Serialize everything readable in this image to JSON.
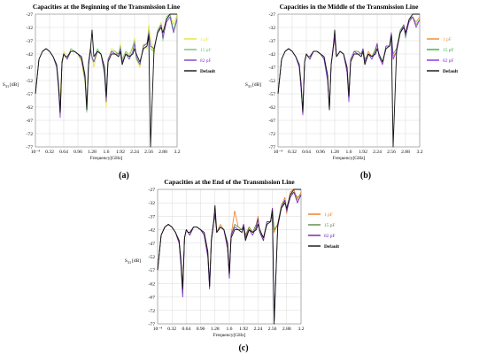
{
  "figure": {
    "panel_letters": [
      "(a)",
      "(b)",
      "(c)"
    ]
  },
  "chart_data": [
    {
      "panel": "(a)",
      "type": "line",
      "title": "Capacities at the Beginning of the Transmission Line",
      "xlabel": "Frequency[GHz]",
      "ylabel": "S31 [dB]",
      "ylabel_main": "S",
      "ylabel_sub": "31",
      "ylabel_unit": "[dB]",
      "xlim": [
        0.0001,
        3.2
      ],
      "ylim": [
        -77,
        -27
      ],
      "x_ticks": [
        0.0001,
        0.32,
        0.64,
        0.96,
        1.28,
        1.6,
        1.92,
        2.24,
        2.56,
        2.88,
        3.2
      ],
      "x_tick_labels": [
        "10⁻⁴",
        "0.32",
        "0.64",
        "0.96",
        "1.28",
        "1.6",
        "1.92",
        "2.24",
        "2.56",
        "2.88",
        "3.2"
      ],
      "y_ticks": [
        -27,
        -32,
        -37,
        -42,
        -47,
        -52,
        -57,
        -62,
        -67,
        -72,
        -77
      ],
      "legend_position": "right",
      "x": [
        0.0001,
        0.08,
        0.16,
        0.24,
        0.32,
        0.4,
        0.48,
        0.52,
        0.56,
        0.6,
        0.64,
        0.68,
        0.72,
        0.8,
        0.88,
        0.96,
        1.04,
        1.12,
        1.16,
        1.2,
        1.24,
        1.28,
        1.32,
        1.4,
        1.48,
        1.56,
        1.6,
        1.64,
        1.72,
        1.8,
        1.88,
        1.92,
        1.96,
        2.04,
        2.12,
        2.2,
        2.24,
        2.28,
        2.36,
        2.44,
        2.52,
        2.56,
        2.6,
        2.68,
        2.76,
        2.84,
        2.88,
        2.96,
        3.04,
        3.12,
        3.2
      ],
      "series": [
        {
          "name": "1 pF",
          "color": "#e8e33a",
          "values": [
            -57,
            -44,
            -41,
            -40,
            -41,
            -43,
            -47,
            -54,
            -58,
            -46,
            -41,
            -42,
            -44,
            -40,
            -41,
            -42,
            -45,
            -53,
            -60,
            -46,
            -39,
            -43,
            -47,
            -41,
            -42,
            -48,
            -62,
            -45,
            -40,
            -41,
            -43,
            -38,
            -46,
            -41,
            -42,
            -40,
            -36,
            -44,
            -47,
            -38,
            -40,
            -31,
            -36,
            -42,
            -33,
            -30,
            -35,
            -29,
            -27,
            -31,
            -27
          ]
        },
        {
          "name": "15 pF",
          "color": "#6ec46e",
          "values": [
            -57,
            -44,
            -41,
            -40,
            -41,
            -43,
            -47,
            -55,
            -62,
            -46,
            -42,
            -43,
            -44,
            -40,
            -41,
            -42,
            -44,
            -52,
            -64,
            -47,
            -40,
            -44,
            -45,
            -40,
            -42,
            -50,
            -60,
            -44,
            -41,
            -41,
            -42,
            -39,
            -44,
            -41,
            -43,
            -39,
            -37,
            -44,
            -46,
            -39,
            -38,
            -33,
            -40,
            -41,
            -33,
            -31,
            -37,
            -28,
            -27,
            -33,
            -28
          ]
        },
        {
          "name": "82 pF",
          "color": "#7b3fc4",
          "values": [
            -57,
            -44,
            -41,
            -40,
            -41,
            -43,
            -47,
            -55,
            -66,
            -45,
            -42,
            -43,
            -44,
            -41,
            -41,
            -42,
            -44,
            -51,
            -62,
            -45,
            -40,
            -43,
            -45,
            -41,
            -42,
            -49,
            -60,
            -44,
            -41,
            -42,
            -42,
            -40,
            -45,
            -42,
            -44,
            -41,
            -38,
            -43,
            -46,
            -39,
            -38,
            -34,
            -39,
            -40,
            -34,
            -31,
            -36,
            -30,
            -28,
            -34,
            -29
          ]
        },
        {
          "name": "Default",
          "color": "#111111",
          "values": [
            -57,
            -44,
            -41,
            -40,
            -41,
            -43,
            -46,
            -53,
            -64,
            -45,
            -42,
            -43,
            -43,
            -41,
            -41,
            -42,
            -43,
            -50,
            -63,
            -46,
            -41,
            -33,
            -43,
            -41,
            -42,
            -47,
            -58,
            -45,
            -42,
            -42,
            -43,
            -41,
            -46,
            -42,
            -43,
            -42,
            -40,
            -42,
            -45,
            -40,
            -39,
            -35,
            -77,
            -40,
            -34,
            -32,
            -34,
            -29,
            -27,
            -27,
            -27
          ]
        }
      ]
    },
    {
      "panel": "(b)",
      "type": "line",
      "title": "Capacities in the Middle of the Transmission Line",
      "xlabel": "Frequency[GHz]",
      "ylabel": "S31 [dB]",
      "ylabel_main": "S",
      "ylabel_sub": "31",
      "ylabel_unit": "[dB]",
      "xlim": [
        0.0001,
        3.2
      ],
      "ylim": [
        -77,
        -27
      ],
      "x_ticks": [
        0.0001,
        0.32,
        0.64,
        0.96,
        1.28,
        1.6,
        1.92,
        2.24,
        2.56,
        2.88,
        3.2
      ],
      "x_tick_labels": [
        "10⁻⁴",
        "0.32",
        "0.64",
        "0.96",
        "1.28",
        "1.6",
        "1.92",
        "2.24",
        "2.56",
        "2.88",
        "3.2"
      ],
      "y_ticks": [
        -27,
        -32,
        -37,
        -42,
        -47,
        -52,
        -57,
        -62,
        -67,
        -72,
        -77
      ],
      "legend_position": "right",
      "x": [
        0.0001,
        0.08,
        0.16,
        0.24,
        0.32,
        0.4,
        0.48,
        0.52,
        0.56,
        0.6,
        0.64,
        0.68,
        0.72,
        0.8,
        0.88,
        0.96,
        1.04,
        1.12,
        1.16,
        1.2,
        1.24,
        1.28,
        1.32,
        1.4,
        1.48,
        1.56,
        1.6,
        1.64,
        1.72,
        1.8,
        1.88,
        1.92,
        1.96,
        2.04,
        2.12,
        2.2,
        2.24,
        2.28,
        2.36,
        2.44,
        2.52,
        2.56,
        2.6,
        2.68,
        2.76,
        2.84,
        2.88,
        2.96,
        3.04,
        3.12,
        3.2
      ],
      "series": [
        {
          "name": "1 pF",
          "color": "#ee8a2a",
          "values": [
            -57,
            -44,
            -41,
            -40,
            -41,
            -43,
            -47,
            -55,
            -64,
            -45,
            -42,
            -43,
            -44,
            -41,
            -41,
            -42,
            -44,
            -51,
            -63,
            -46,
            -40,
            -37,
            -43,
            -41,
            -42,
            -48,
            -58,
            -44,
            -41,
            -41,
            -42,
            -40,
            -45,
            -41,
            -43,
            -41,
            -38,
            -43,
            -46,
            -39,
            -39,
            -35,
            -43,
            -41,
            -34,
            -31,
            -35,
            -29,
            -28,
            -30,
            -28
          ]
        },
        {
          "name": "15 pF",
          "color": "#3cae3c",
          "values": [
            -57,
            -44,
            -41,
            -40,
            -41,
            -43,
            -47,
            -55,
            -63,
            -45,
            -42,
            -43,
            -44,
            -41,
            -41,
            -42,
            -44,
            -52,
            -62,
            -46,
            -40,
            -36,
            -43,
            -41,
            -42,
            -49,
            -59,
            -44,
            -41,
            -41,
            -42,
            -40,
            -44,
            -42,
            -43,
            -40,
            -38,
            -43,
            -45,
            -39,
            -39,
            -34,
            -42,
            -40,
            -33,
            -31,
            -36,
            -29,
            -28,
            -31,
            -29
          ]
        },
        {
          "name": "82 pF",
          "color": "#8a2be2",
          "values": [
            -57,
            -44,
            -41,
            -40,
            -41,
            -43,
            -47,
            -55,
            -65,
            -45,
            -42,
            -43,
            -44,
            -41,
            -41,
            -42,
            -44,
            -52,
            -63,
            -46,
            -40,
            -36,
            -43,
            -41,
            -42,
            -49,
            -60,
            -44,
            -41,
            -42,
            -42,
            -40,
            -45,
            -42,
            -44,
            -41,
            -38,
            -43,
            -46,
            -39,
            -39,
            -34,
            -44,
            -41,
            -34,
            -31,
            -35,
            -30,
            -28,
            -32,
            -29
          ]
        },
        {
          "name": "Default",
          "color": "#111111",
          "values": [
            -57,
            -44,
            -41,
            -40,
            -41,
            -43,
            -46,
            -53,
            -64,
            -45,
            -42,
            -43,
            -43,
            -41,
            -41,
            -42,
            -43,
            -50,
            -63,
            -46,
            -41,
            -33,
            -43,
            -41,
            -42,
            -47,
            -58,
            -45,
            -42,
            -42,
            -43,
            -41,
            -46,
            -42,
            -43,
            -42,
            -40,
            -42,
            -45,
            -40,
            -39,
            -35,
            -77,
            -40,
            -34,
            -32,
            -34,
            -29,
            -27,
            -27,
            -27
          ]
        }
      ]
    },
    {
      "panel": "(c)",
      "type": "line",
      "title": "Capacities at the End of the Transmission Line",
      "xlabel": "Frequency[GHz]",
      "ylabel": "S31 [dB]",
      "ylabel_main": "S",
      "ylabel_sub": "31",
      "ylabel_unit": "[dB]",
      "xlim": [
        0.0001,
        3.2
      ],
      "ylim": [
        -77,
        -27
      ],
      "x_ticks": [
        0.0001,
        0.32,
        0.64,
        0.96,
        1.28,
        1.6,
        1.92,
        2.24,
        2.56,
        2.88,
        3.2
      ],
      "x_tick_labels": [
        "10⁻⁴",
        "0.32",
        "0.64",
        "0.96",
        "1.28",
        "1.6",
        "1.92",
        "2.24",
        "2.56",
        "2.88",
        "3.2"
      ],
      "y_ticks": [
        -27,
        -32,
        -37,
        -42,
        -47,
        -52,
        -57,
        -62,
        -67,
        -72,
        -77
      ],
      "legend_position": "right",
      "x": [
        0.0001,
        0.08,
        0.16,
        0.24,
        0.32,
        0.4,
        0.48,
        0.52,
        0.56,
        0.6,
        0.64,
        0.68,
        0.72,
        0.8,
        0.88,
        0.96,
        1.04,
        1.12,
        1.16,
        1.2,
        1.24,
        1.28,
        1.32,
        1.4,
        1.48,
        1.56,
        1.6,
        1.64,
        1.72,
        1.8,
        1.88,
        1.92,
        1.96,
        2.04,
        2.12,
        2.2,
        2.24,
        2.28,
        2.36,
        2.44,
        2.52,
        2.56,
        2.6,
        2.68,
        2.76,
        2.84,
        2.88,
        2.96,
        3.04,
        3.12,
        3.2
      ],
      "series": [
        {
          "name": "1 pF",
          "color": "#ee7a22",
          "values": [
            -57,
            -44,
            -41,
            -40,
            -41,
            -43,
            -47,
            -54,
            -63,
            -45,
            -42,
            -43,
            -44,
            -41,
            -41,
            -42,
            -44,
            -51,
            -62,
            -45,
            -40,
            -36,
            -43,
            -40,
            -42,
            -49,
            -59,
            -44,
            -35,
            -41,
            -42,
            -40,
            -45,
            -41,
            -43,
            -40,
            -37,
            -43,
            -46,
            -39,
            -39,
            -34,
            -43,
            -40,
            -33,
            -30,
            -36,
            -28,
            -27,
            -31,
            -28
          ]
        },
        {
          "name": "15 pF",
          "color": "#5a8a3a",
          "values": [
            -57,
            -44,
            -41,
            -40,
            -41,
            -43,
            -47,
            -55,
            -64,
            -45,
            -42,
            -43,
            -44,
            -41,
            -41,
            -42,
            -44,
            -52,
            -63,
            -46,
            -40,
            -37,
            -43,
            -41,
            -42,
            -48,
            -60,
            -44,
            -40,
            -41,
            -42,
            -40,
            -44,
            -41,
            -43,
            -40,
            -38,
            -43,
            -45,
            -39,
            -39,
            -34,
            -42,
            -40,
            -33,
            -31,
            -35,
            -29,
            -28,
            -30,
            -29
          ]
        },
        {
          "name": "82 pF",
          "color": "#6a1fb0",
          "values": [
            -57,
            -44,
            -41,
            -40,
            -41,
            -43,
            -47,
            -55,
            -67,
            -45,
            -42,
            -43,
            -44,
            -41,
            -41,
            -42,
            -44,
            -52,
            -64,
            -46,
            -40,
            -36,
            -43,
            -41,
            -42,
            -49,
            -60,
            -44,
            -41,
            -42,
            -42,
            -40,
            -45,
            -42,
            -44,
            -41,
            -38,
            -43,
            -46,
            -39,
            -39,
            -34,
            -76,
            -41,
            -34,
            -31,
            -35,
            -30,
            -28,
            -32,
            -29
          ]
        },
        {
          "name": "Default",
          "color": "#111111",
          "values": [
            -57,
            -44,
            -41,
            -40,
            -41,
            -43,
            -46,
            -53,
            -64,
            -45,
            -42,
            -43,
            -43,
            -41,
            -41,
            -42,
            -43,
            -50,
            -63,
            -46,
            -41,
            -33,
            -43,
            -41,
            -42,
            -47,
            -58,
            -45,
            -42,
            -42,
            -43,
            -41,
            -46,
            -42,
            -43,
            -42,
            -40,
            -42,
            -45,
            -40,
            -39,
            -35,
            -77,
            -40,
            -34,
            -32,
            -34,
            -29,
            -27,
            -27,
            -27
          ]
        }
      ]
    }
  ]
}
